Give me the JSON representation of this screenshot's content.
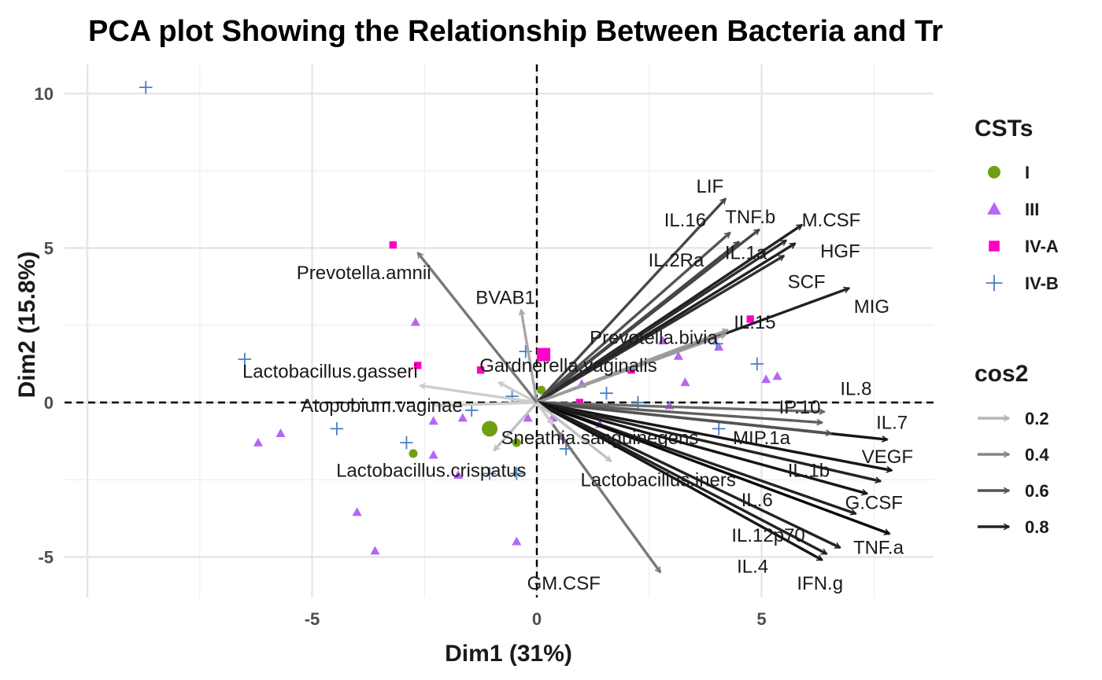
{
  "chart_data": {
    "type": "scatter",
    "subtype": "pca-biplot",
    "title": "PCA plot Showing the Relationship Between Bacteria and Tr",
    "xlabel": "Dim1 (31%)",
    "ylabel": "Dim2 (15.8%)",
    "xlim": [
      -9.5,
      8.8
    ],
    "ylim": [
      -6.2,
      11.0
    ],
    "x_ticks": [
      -5,
      0,
      5
    ],
    "y_ticks": [
      -5,
      0,
      5,
      10
    ],
    "grid": true,
    "zero_lines": "dashed",
    "legend_position": "right",
    "legend_groups": {
      "title": "CSTs",
      "items": [
        {
          "label": "I",
          "shape": "circle",
          "color": "#6fa012"
        },
        {
          "label": "III",
          "shape": "triangle",
          "color": "#b666f5"
        },
        {
          "label": "IV-A",
          "shape": "square",
          "color": "#ff00c8"
        },
        {
          "label": "IV-B",
          "shape": "plus",
          "color": "#4a7fc1"
        }
      ]
    },
    "legend_cos2": {
      "title": "cos2",
      "items": [
        {
          "label": "0.2",
          "value": 0.2
        },
        {
          "label": "0.4",
          "value": 0.4
        },
        {
          "label": "0.6",
          "value": 0.6
        },
        {
          "label": "0.8",
          "value": 0.8
        }
      ]
    },
    "centroids": [
      {
        "group": "I",
        "x": -1.05,
        "y": -0.85
      },
      {
        "group": "IV-A",
        "x": 0.15,
        "y": 1.55
      }
    ],
    "points": [
      {
        "group": "I",
        "x": -2.75,
        "y": -1.65
      },
      {
        "group": "I",
        "x": -0.45,
        "y": -1.3
      },
      {
        "group": "I",
        "x": 0.1,
        "y": 0.4
      },
      {
        "group": "III",
        "x": -6.2,
        "y": -1.3
      },
      {
        "group": "III",
        "x": -5.7,
        "y": -1.0
      },
      {
        "group": "III",
        "x": -4.0,
        "y": -3.55
      },
      {
        "group": "III",
        "x": -3.6,
        "y": -4.8
      },
      {
        "group": "III",
        "x": -2.7,
        "y": 2.6
      },
      {
        "group": "III",
        "x": -2.3,
        "y": -0.6
      },
      {
        "group": "III",
        "x": -2.3,
        "y": -1.7
      },
      {
        "group": "III",
        "x": -1.75,
        "y": -2.35
      },
      {
        "group": "III",
        "x": -1.65,
        "y": -0.5
      },
      {
        "group": "III",
        "x": -0.45,
        "y": -4.5
      },
      {
        "group": "III",
        "x": -0.2,
        "y": -0.5
      },
      {
        "group": "III",
        "x": 0.35,
        "y": -0.5
      },
      {
        "group": "III",
        "x": 0.55,
        "y": -1.1
      },
      {
        "group": "III",
        "x": 1.0,
        "y": 0.6
      },
      {
        "group": "III",
        "x": 1.4,
        "y": -0.7
      },
      {
        "group": "III",
        "x": 2.8,
        "y": 2.0
      },
      {
        "group": "III",
        "x": 2.95,
        "y": -0.1
      },
      {
        "group": "III",
        "x": 3.3,
        "y": 0.65
      },
      {
        "group": "III",
        "x": 4.05,
        "y": 1.8
      },
      {
        "group": "III",
        "x": 5.1,
        "y": 0.75
      },
      {
        "group": "III",
        "x": 5.35,
        "y": 0.85
      },
      {
        "group": "III",
        "x": 3.15,
        "y": 1.5
      },
      {
        "group": "IV-A",
        "x": -3.2,
        "y": 5.1
      },
      {
        "group": "IV-A",
        "x": -2.65,
        "y": 1.2
      },
      {
        "group": "IV-A",
        "x": -1.25,
        "y": 1.05
      },
      {
        "group": "IV-A",
        "x": 0.95,
        "y": 0.0
      },
      {
        "group": "IV-A",
        "x": 2.1,
        "y": 1.05
      },
      {
        "group": "IV-A",
        "x": 4.75,
        "y": 2.7
      },
      {
        "group": "IV-B",
        "x": -8.7,
        "y": 10.2
      },
      {
        "group": "IV-B",
        "x": -6.5,
        "y": 1.4
      },
      {
        "group": "IV-B",
        "x": -4.45,
        "y": -0.85
      },
      {
        "group": "IV-B",
        "x": -2.9,
        "y": -1.3
      },
      {
        "group": "IV-B",
        "x": -1.45,
        "y": -0.25
      },
      {
        "group": "IV-B",
        "x": -1.05,
        "y": -2.3
      },
      {
        "group": "IV-B",
        "x": -0.55,
        "y": 0.2
      },
      {
        "group": "IV-B",
        "x": -0.45,
        "y": -2.3
      },
      {
        "group": "IV-B",
        "x": -0.25,
        "y": 1.65
      },
      {
        "group": "IV-B",
        "x": 0.65,
        "y": -1.5
      },
      {
        "group": "IV-B",
        "x": 1.55,
        "y": 0.3
      },
      {
        "group": "IV-B",
        "x": 2.25,
        "y": 0.0
      },
      {
        "group": "IV-B",
        "x": 4.0,
        "y": 1.9
      },
      {
        "group": "IV-B",
        "x": 4.05,
        "y": -0.85
      },
      {
        "group": "IV-B",
        "x": 4.9,
        "y": 1.25
      }
    ],
    "variables": [
      {
        "name": "LIF",
        "x": 4.2,
        "y": 6.6,
        "cos2": 0.65
      },
      {
        "name": "TNF.b",
        "x": 4.95,
        "y": 5.6,
        "cos2": 0.65
      },
      {
        "name": "IL.16",
        "x": 4.3,
        "y": 5.5,
        "cos2": 0.6
      },
      {
        "name": "M.CSF",
        "x": 5.9,
        "y": 5.75,
        "cos2": 0.8
      },
      {
        "name": "IL.2Ra",
        "x": 4.5,
        "y": 5.2,
        "cos2": 0.65
      },
      {
        "name": "IL.1a",
        "x": 5.55,
        "y": 5.25,
        "cos2": 0.75
      },
      {
        "name": "HGF",
        "x": 5.75,
        "y": 5.15,
        "cos2": 0.8
      },
      {
        "name": "SCF",
        "x": 5.5,
        "y": 4.75,
        "cos2": 0.75
      },
      {
        "name": "MIG",
        "x": 6.95,
        "y": 3.7,
        "cos2": 0.8
      },
      {
        "name": "IL.15",
        "x": 4.2,
        "y": 2.2,
        "cos2": 0.3
      },
      {
        "name": "Prevotella.bivia",
        "x": 4.25,
        "y": 2.35,
        "cos2": 0.3
      },
      {
        "name": "IL.8",
        "x": 6.4,
        "y": -0.3,
        "cos2": 0.5
      },
      {
        "name": "IP.10",
        "x": 6.35,
        "y": -0.65,
        "cos2": 0.55
      },
      {
        "name": "IL.7",
        "x": 7.8,
        "y": -1.2,
        "cos2": 0.85
      },
      {
        "name": "MIP.1a",
        "x": 6.55,
        "y": -1.0,
        "cos2": 0.6
      },
      {
        "name": "VEGF",
        "x": 7.9,
        "y": -2.2,
        "cos2": 0.85
      },
      {
        "name": "IL.1b",
        "x": 7.65,
        "y": -2.55,
        "cos2": 0.8
      },
      {
        "name": "G.CSF",
        "x": 7.35,
        "y": -2.95,
        "cos2": 0.85
      },
      {
        "name": "IL.6",
        "x": 7.1,
        "y": -3.6,
        "cos2": 0.8
      },
      {
        "name": "TNF.a",
        "x": 7.85,
        "y": -4.25,
        "cos2": 0.9
      },
      {
        "name": "IL.12p70",
        "x": 6.75,
        "y": -4.7,
        "cos2": 0.8
      },
      {
        "name": "IL.4",
        "x": 6.45,
        "y": -4.9,
        "cos2": 0.8
      },
      {
        "name": "IFN.g",
        "x": 6.35,
        "y": -5.1,
        "cos2": 0.85
      },
      {
        "name": "GM.CSF",
        "x": 2.75,
        "y": -5.5,
        "cos2": 0.45
      },
      {
        "name": "Lactobacillus.iners",
        "x": 1.65,
        "y": -1.9,
        "cos2": 0.15
      },
      {
        "name": "Sneathia.sanguinegens",
        "x": 0.35,
        "y": -0.7,
        "cos2": 0.1
      },
      {
        "name": "Lactobacillus.crispatus",
        "x": -0.95,
        "y": -1.55,
        "cos2": 0.15
      },
      {
        "name": "Atopobium.vaginae",
        "x": -2.25,
        "y": -0.1,
        "cos2": 0.1
      },
      {
        "name": "Lactobacillus.gasseri",
        "x": -2.6,
        "y": 0.55,
        "cos2": 0.1
      },
      {
        "name": "Gardnerella.vaginalis",
        "x": -0.85,
        "y": 0.65,
        "cos2": 0.1
      },
      {
        "name": "BVAB1",
        "x": -0.35,
        "y": 3.0,
        "cos2": 0.25
      },
      {
        "name": "Prevotella.amnii",
        "x": -2.65,
        "y": 4.85,
        "cos2": 0.45
      }
    ],
    "variable_labels": [
      {
        "name": "LIF",
        "x": 3.85,
        "y": 7.0
      },
      {
        "name": "TNF.b",
        "x": 4.75,
        "y": 6.0
      },
      {
        "name": "IL.16",
        "x": 3.3,
        "y": 5.9
      },
      {
        "name": "M.CSF",
        "x": 6.55,
        "y": 5.9
      },
      {
        "name": "IL.2Ra",
        "x": 3.1,
        "y": 4.6
      },
      {
        "name": "IL.1a",
        "x": 4.65,
        "y": 4.85
      },
      {
        "name": "HGF",
        "x": 6.75,
        "y": 4.9
      },
      {
        "name": "SCF",
        "x": 6.0,
        "y": 3.9
      },
      {
        "name": "MIG",
        "x": 7.45,
        "y": 3.1
      },
      {
        "name": "IL.15",
        "x": 4.85,
        "y": 2.6
      },
      {
        "name": "Prevotella.bivia",
        "x": 2.6,
        "y": 2.1
      },
      {
        "name": "IL.8",
        "x": 7.1,
        "y": 0.45
      },
      {
        "name": "IP.10",
        "x": 5.85,
        "y": -0.15
      },
      {
        "name": "IL.7",
        "x": 7.9,
        "y": -0.65
      },
      {
        "name": "MIP.1a",
        "x": 5.0,
        "y": -1.15
      },
      {
        "name": "VEGF",
        "x": 7.8,
        "y": -1.75
      },
      {
        "name": "IL.1b",
        "x": 6.05,
        "y": -2.2
      },
      {
        "name": "G.CSF",
        "x": 7.5,
        "y": -3.25
      },
      {
        "name": "IL.6",
        "x": 4.9,
        "y": -3.15
      },
      {
        "name": "TNF.a",
        "x": 7.6,
        "y": -4.7
      },
      {
        "name": "IL.12p70",
        "x": 5.15,
        "y": -4.3
      },
      {
        "name": "IL.4",
        "x": 4.8,
        "y": -5.3
      },
      {
        "name": "IFN.g",
        "x": 6.3,
        "y": -5.85
      },
      {
        "name": "GM.CSF",
        "x": 0.6,
        "y": -5.85
      },
      {
        "name": "Lactobacillus.iners",
        "x": 2.7,
        "y": -2.5
      },
      {
        "name": "Sneathia.sanguinegens",
        "x": 1.4,
        "y": -1.15
      },
      {
        "name": "Lactobacillus.crispatus",
        "x": -2.35,
        "y": -2.2
      },
      {
        "name": "Atopobium.vaginae",
        "x": -3.45,
        "y": -0.1
      },
      {
        "name": "Lactobacillus.gasseri",
        "x": -4.6,
        "y": 1.0
      },
      {
        "name": "Gardnerella.vaginalis",
        "x": 0.7,
        "y": 1.2
      },
      {
        "name": "BVAB1",
        "x": -0.7,
        "y": 3.4
      },
      {
        "name": "Prevotella.amnii",
        "x": -3.85,
        "y": 4.2
      }
    ]
  }
}
